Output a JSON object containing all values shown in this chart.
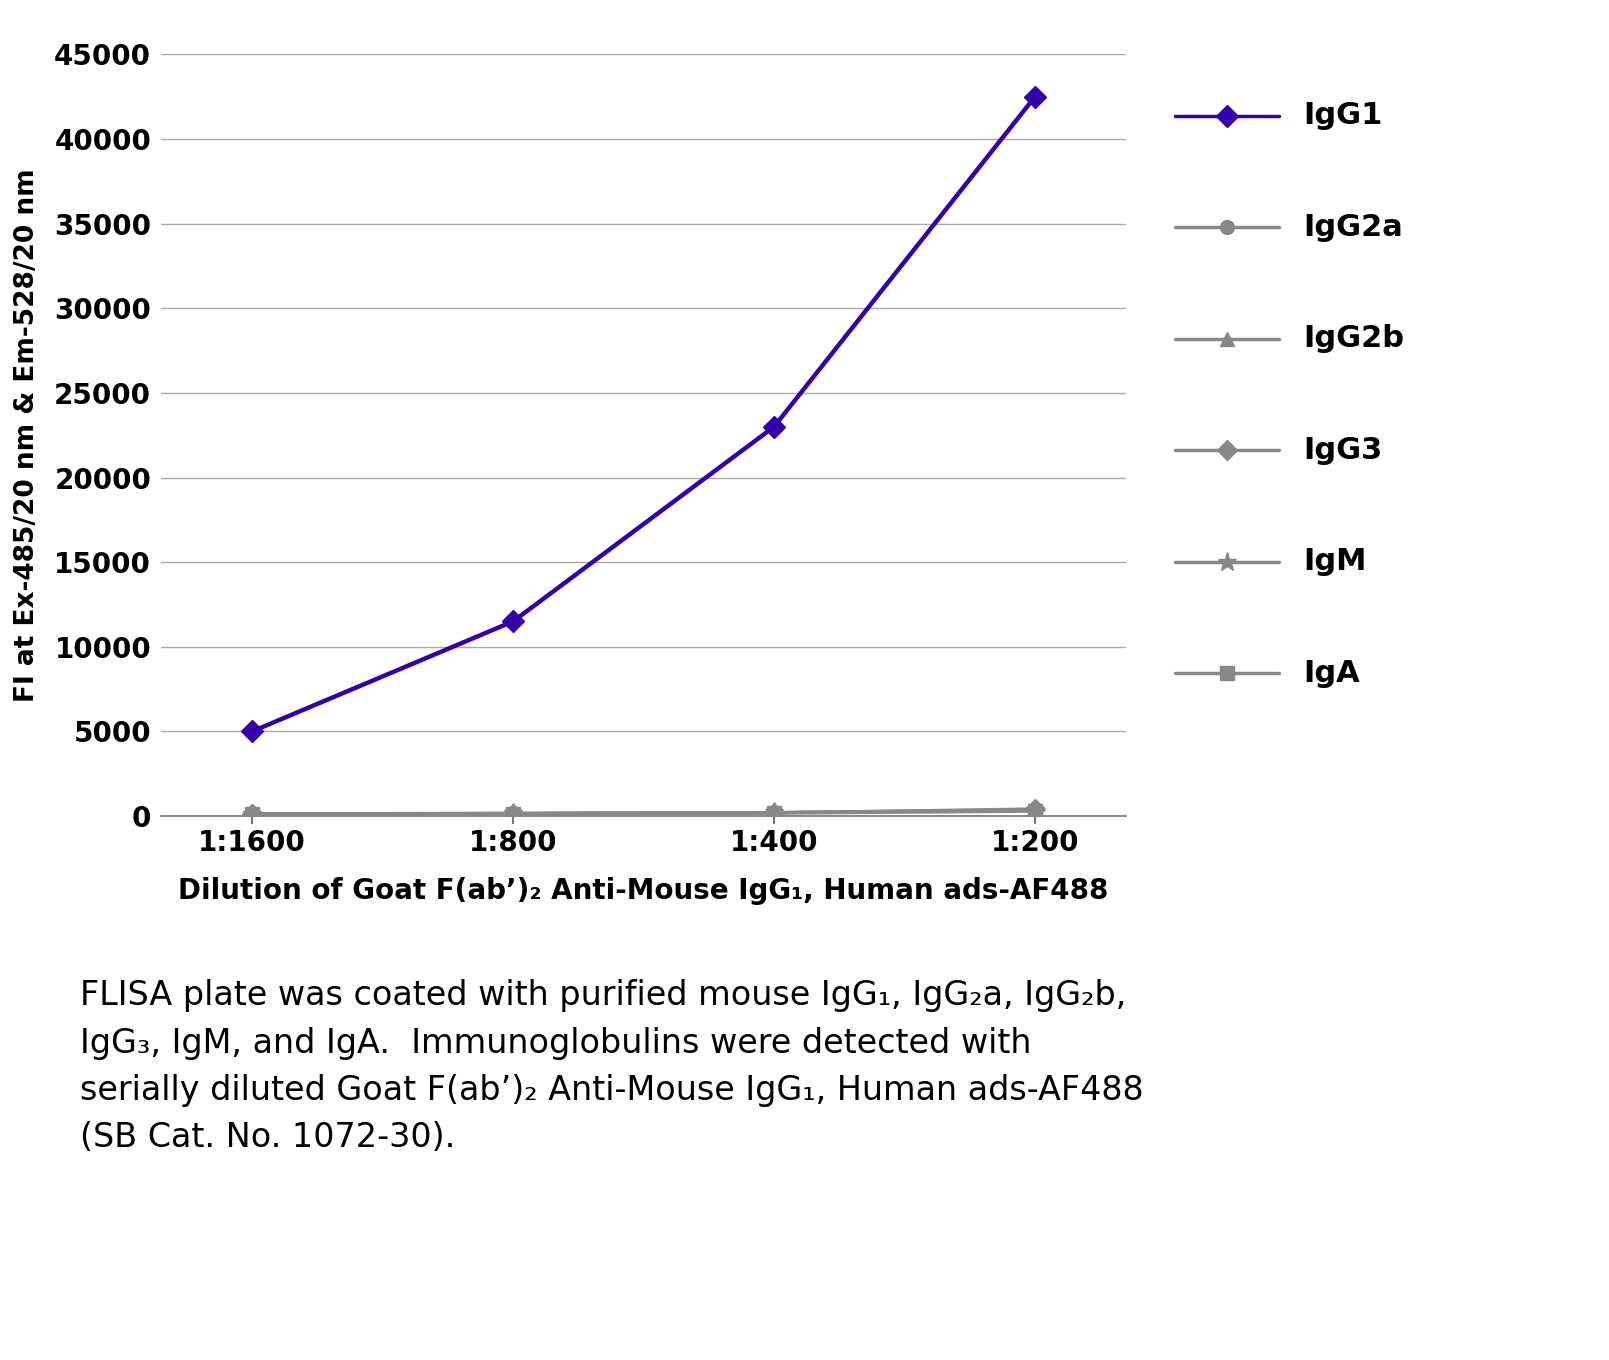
{
  "x_labels": [
    "1:1600",
    "1:800",
    "1:400",
    "1:200"
  ],
  "x_positions": [
    0,
    1,
    2,
    3
  ],
  "series": [
    {
      "label": "IgG1",
      "values": [
        5000,
        11500,
        23000,
        42500
      ],
      "color": "#3300aa",
      "marker": "D",
      "markersize": 11,
      "linewidth": 3.2,
      "zorder": 5
    },
    {
      "label": "IgG2a",
      "values": [
        150,
        150,
        200,
        350
      ],
      "color": "#888888",
      "marker": "o",
      "markersize": 10,
      "linewidth": 2.2,
      "zorder": 4
    },
    {
      "label": "IgG2b",
      "values": [
        120,
        160,
        200,
        380
      ],
      "color": "#888888",
      "marker": "^",
      "markersize": 10,
      "linewidth": 2.2,
      "zorder": 4
    },
    {
      "label": "IgG3",
      "values": [
        110,
        140,
        190,
        420
      ],
      "color": "#888888",
      "marker": "D",
      "markersize": 10,
      "linewidth": 2.2,
      "zorder": 4
    },
    {
      "label": "IgM",
      "values": [
        130,
        160,
        210,
        330
      ],
      "color": "#888888",
      "marker": "*",
      "markersize": 14,
      "linewidth": 2.2,
      "zorder": 4
    },
    {
      "label": "IgA",
      "values": [
        90,
        110,
        160,
        280
      ],
      "color": "#888888",
      "marker": "s",
      "markersize": 10,
      "linewidth": 2.2,
      "zorder": 4
    }
  ],
  "ylabel": "FI at Ex-485/20 nm & Em-528/20 nm",
  "xlabel": "Dilution of Goat F(ab’)₂ Anti-Mouse IgG₁, Human ads-AF488",
  "ylim": [
    0,
    45000
  ],
  "yticks": [
    0,
    5000,
    10000,
    15000,
    20000,
    25000,
    30000,
    35000,
    40000,
    45000
  ],
  "grid_color": "#aaaaaa",
  "legend_entries": [
    {
      "label": "IgG1",
      "color": "#3300aa",
      "marker": "D",
      "ms": 11
    },
    {
      "label": "IgG2a",
      "color": "#888888",
      "marker": "o",
      "ms": 10
    },
    {
      "label": "IgG2b",
      "color": "#888888",
      "marker": "^",
      "ms": 10
    },
    {
      "label": "IgG3",
      "color": "#888888",
      "marker": "D",
      "ms": 10
    },
    {
      "label": "IgM",
      "color": "#888888",
      "marker": "*",
      "ms": 14
    },
    {
      "label": "IgA",
      "color": "#888888",
      "marker": "s",
      "ms": 10
    }
  ],
  "caption": "FLISA plate was coated with purified mouse IgG₁, IgG₂a, IgG₂b,\nIgG₃, IgM, and IgA.  Immunoglobulins were detected with\nserially diluted Goat F(ab’)₂ Anti-Mouse IgG₁, Human ads-AF488\n(SB Cat. No. 1072-30)."
}
